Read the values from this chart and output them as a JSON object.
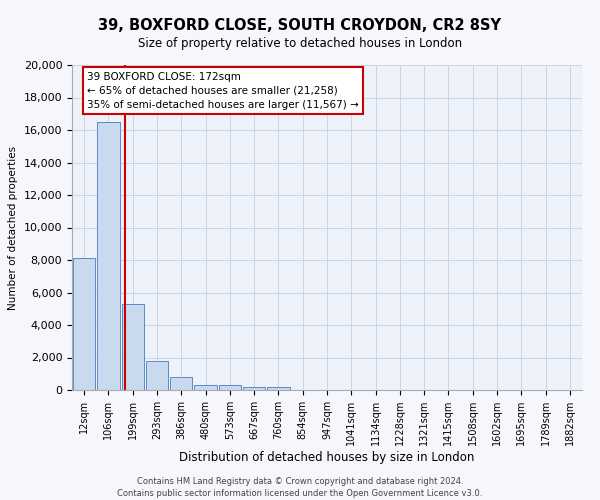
{
  "title": "39, BOXFORD CLOSE, SOUTH CROYDON, CR2 8SY",
  "subtitle": "Size of property relative to detached houses in London",
  "xlabel": "Distribution of detached houses by size in London",
  "ylabel": "Number of detached properties",
  "bar_color": "#c9d9ee",
  "bar_edge_color": "#5b8ac7",
  "bg_color": "#edf2fa",
  "grid_color": "#c0c8d8",
  "annotation_box_color": "#ffffff",
  "annotation_border_color": "#cc0000",
  "vline_color": "#cc0000",
  "categories": [
    "12sqm",
    "106sqm",
    "199sqm",
    "293sqm",
    "386sqm",
    "480sqm",
    "573sqm",
    "667sqm",
    "760sqm",
    "854sqm",
    "947sqm",
    "1041sqm",
    "1134sqm",
    "1228sqm",
    "1321sqm",
    "1415sqm",
    "1508sqm",
    "1602sqm",
    "1695sqm",
    "1789sqm",
    "1882sqm"
  ],
  "values": [
    8100,
    16500,
    5300,
    1800,
    800,
    300,
    280,
    200,
    180,
    0,
    0,
    0,
    0,
    0,
    0,
    0,
    0,
    0,
    0,
    0,
    0
  ],
  "ylim": [
    0,
    20000
  ],
  "yticks": [
    0,
    2000,
    4000,
    6000,
    8000,
    10000,
    12000,
    14000,
    16000,
    18000,
    20000
  ],
  "property_size": "172sqm",
  "property_name": "39 BOXFORD CLOSE",
  "pct_smaller": 65,
  "num_smaller": 21258,
  "pct_larger": 35,
  "num_larger": 11567,
  "vline_x_index": 1.68,
  "footer_line1": "Contains HM Land Registry data © Crown copyright and database right 2024.",
  "footer_line2": "Contains public sector information licensed under the Open Government Licence v3.0."
}
